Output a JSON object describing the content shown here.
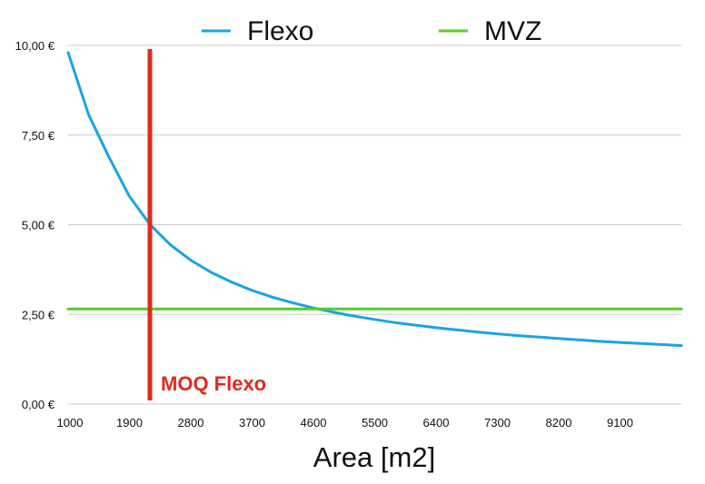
{
  "chart_data": {
    "type": "line",
    "title": "",
    "xlabel": "Area [m2]",
    "ylabel": "",
    "xlim": [
      1000,
      10000
    ],
    "ylim": [
      0,
      10
    ],
    "x_tick_labels": [
      "1000",
      "1900",
      "2800",
      "3700",
      "4600",
      "5500",
      "6400",
      "7300",
      "8200",
      "9100"
    ],
    "x_tick_values": [
      1000,
      1900,
      2800,
      3700,
      4600,
      5500,
      6400,
      7300,
      8200,
      9100
    ],
    "y_tick_labels": [
      "0,00 €",
      "2,50 €",
      "5,00 €",
      "7,50 €",
      "10,00 €"
    ],
    "y_tick_values": [
      0,
      2.5,
      5,
      7.5,
      10
    ],
    "grid": "horizontal",
    "legend_position": "top",
    "series": [
      {
        "name": "Flexo",
        "color": "#1aa3e8",
        "x": [
          1000,
          1300,
          1600,
          1900,
          2200,
          2500,
          2800,
          3100,
          3400,
          3700,
          4000,
          4300,
          4600,
          4900,
          5200,
          5500,
          5800,
          6100,
          6400,
          6700,
          7000,
          7300,
          7600,
          7900,
          8200,
          8500,
          8800,
          9100,
          9400,
          9700,
          10000
        ],
        "y": [
          9.8,
          8.07,
          6.88,
          5.79,
          5.01,
          4.44,
          4.01,
          3.67,
          3.4,
          3.17,
          2.98,
          2.82,
          2.68,
          2.56,
          2.45,
          2.36,
          2.27,
          2.2,
          2.13,
          2.07,
          2.01,
          1.96,
          1.91,
          1.87,
          1.83,
          1.79,
          1.75,
          1.72,
          1.69,
          1.66,
          1.63
        ]
      },
      {
        "name": "MVZ",
        "color": "#55cc2b",
        "x": [
          1000,
          10000
        ],
        "y": [
          2.65,
          2.65
        ]
      }
    ],
    "annotations": [
      {
        "type": "vline",
        "x": 2200,
        "y_range": [
          0.1,
          9.9
        ],
        "color": "#e02a1c",
        "label": "MOQ Flexo"
      }
    ]
  }
}
